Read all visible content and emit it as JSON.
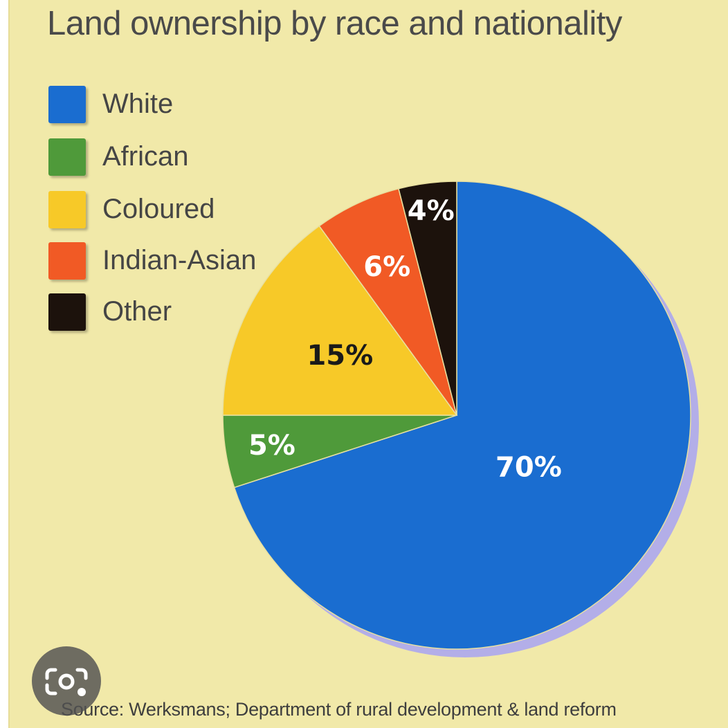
{
  "chart_data": {
    "type": "pie",
    "title": "Land ownership by race and nationality",
    "categories": [
      "White",
      "African",
      "Coloured",
      "Indian-Asian",
      "Other"
    ],
    "values": [
      70,
      5,
      15,
      6,
      4
    ],
    "value_labels": [
      "70%",
      "5%",
      "15%",
      "6%",
      "4%"
    ],
    "colors": [
      "#1a6dd0",
      "#4f9a3a",
      "#f7c928",
      "#f15a25",
      "#1c120c"
    ],
    "label_colors": [
      "#ffffff",
      "#ffffff",
      "#1a1a1a",
      "#ffffff",
      "#ffffff"
    ],
    "legend": "top-left",
    "start": "12-o-clock",
    "direction": "clockwise",
    "source": "Source: Werksmans; Department of rural development & land reform"
  },
  "lens_button": {
    "icon": "camera-search-icon"
  }
}
